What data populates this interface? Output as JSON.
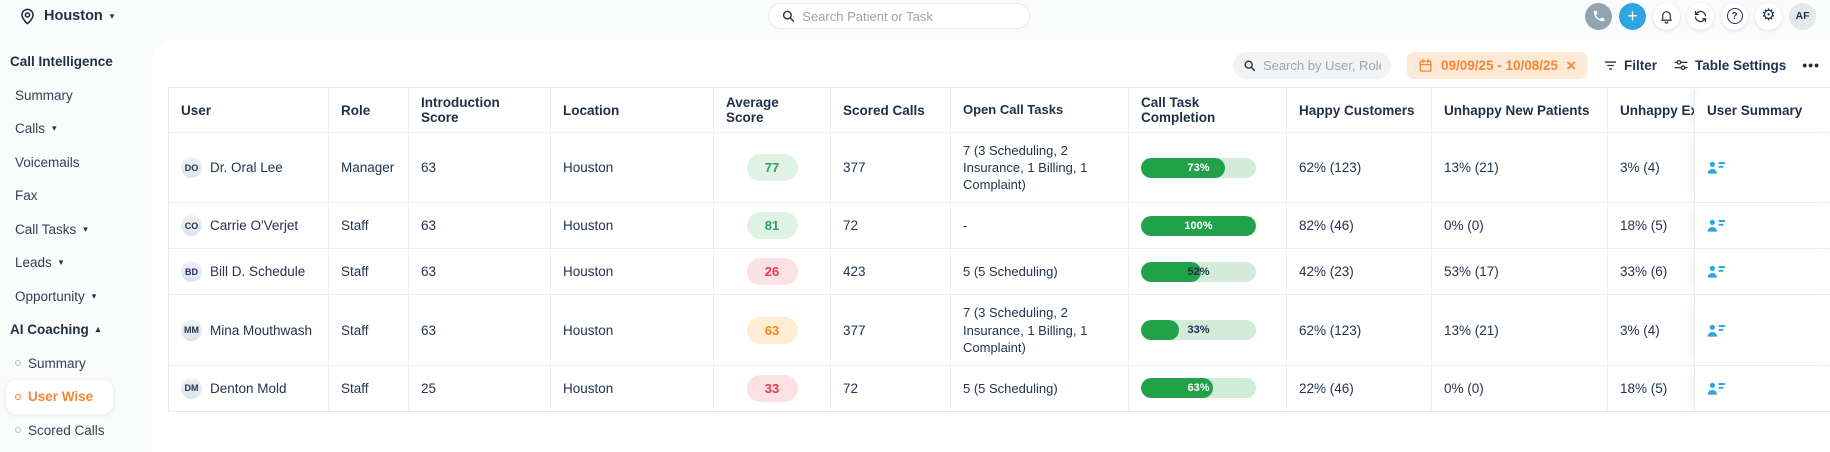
{
  "colors": {
    "accent_orange": "#F58634",
    "accent_blue": "#2EA5DE",
    "navy": "#1E3048",
    "date_pill_bg": "#FCEAD6",
    "green_badge_bg": "#DFF2E4",
    "green_badge_text": "#2AA263",
    "red_badge_bg": "#FBE0E4",
    "red_badge_text": "#E63950",
    "orange_badge_bg": "#FDEDD3",
    "orange_badge_text": "#F0861C",
    "progress_fill": "#21A24A",
    "progress_track": "#D3ECDA"
  },
  "icons": {
    "chevron_down": "▾",
    "chevron_up": "▴",
    "plus": "+",
    "close": "×",
    "gear": "⚙",
    "help": "?",
    "ellipsis": "•••"
  },
  "topbar": {
    "location": "Houston",
    "search_placeholder": "Search Patient or Task",
    "avatar_initials": "AF"
  },
  "sidebar": {
    "items": [
      {
        "label": "Call Intelligence"
      },
      {
        "label": "Summary"
      },
      {
        "label": "Calls"
      },
      {
        "label": "Voicemails"
      },
      {
        "label": "Fax"
      },
      {
        "label": "Call Tasks"
      },
      {
        "label": "Leads"
      },
      {
        "label": "Opportunity"
      },
      {
        "label": "AI Coaching"
      },
      {
        "label": "Summary"
      },
      {
        "label": "User Wise"
      },
      {
        "label": "Scored Calls"
      }
    ]
  },
  "toolbar": {
    "search_placeholder": "Search by User, Role",
    "date_range": "09/09/25 - 10/08/25",
    "filter_label": "Filter",
    "table_settings_label": "Table Settings"
  },
  "table": {
    "columns": [
      "User",
      "Role",
      "Introduction Score",
      "Location",
      "Average Score",
      "Scored Calls",
      "Open Call Tasks",
      "Call Task Completion",
      "Happy Customers",
      "Unhappy New Patients",
      "Unhappy Existing Patients",
      "User Summary"
    ],
    "rows": [
      {
        "initials": "DO",
        "name": "Dr. Oral Lee",
        "role": "Manager",
        "introduction_score": "63",
        "location": "Houston",
        "average_score": "77",
        "average_score_level": "green",
        "scored_calls": "377",
        "open_call_tasks": "7 (3 Scheduling, 2 Insurance, 1 Billing, 1 Complaint)",
        "completion_pct": 73,
        "completion_label": "73%",
        "happy_customers": "62% (123)",
        "unhappy_new_patients": "13% (21)",
        "unhappy_existing_patients": "3% (4)"
      },
      {
        "initials": "CO",
        "name": "Carrie O'Verjet",
        "role": "Staff",
        "introduction_score": "63",
        "location": "Houston",
        "average_score": "81",
        "average_score_level": "green",
        "scored_calls": "72",
        "open_call_tasks": "-",
        "completion_pct": 100,
        "completion_label": "100%",
        "happy_customers": "82% (46)",
        "unhappy_new_patients": "0% (0)",
        "unhappy_existing_patients": "18% (5)"
      },
      {
        "initials": "BD",
        "name": "Bill D. Schedule",
        "role": "Staff",
        "introduction_score": "63",
        "location": "Houston",
        "average_score": "26",
        "average_score_level": "red",
        "scored_calls": "423",
        "open_call_tasks": "5 (5 Scheduling)",
        "completion_pct": 52,
        "completion_label": "52%",
        "happy_customers": "42% (23)",
        "unhappy_new_patients": "53% (17)",
        "unhappy_existing_patients": "33% (6)"
      },
      {
        "initials": "MM",
        "name": "Mina Mouthwash",
        "role": "Staff",
        "introduction_score": "63",
        "location": "Houston",
        "average_score": "63",
        "average_score_level": "orange",
        "scored_calls": "377",
        "open_call_tasks": "7 (3 Scheduling, 2 Insurance, 1 Billing, 1 Complaint)",
        "completion_pct": 33,
        "completion_label": "33%",
        "happy_customers": "62% (123)",
        "unhappy_new_patients": "13% (21)",
        "unhappy_existing_patients": "3% (4)"
      },
      {
        "initials": "DM",
        "name": "Denton Mold",
        "role": "Staff",
        "introduction_score": "25",
        "location": "Houston",
        "average_score": "33",
        "average_score_level": "red",
        "scored_calls": "72",
        "open_call_tasks": "5 (5 Scheduling)",
        "completion_pct": 63,
        "completion_label": "63%",
        "happy_customers": "22% (46)",
        "unhappy_new_patients": "0% (0)",
        "unhappy_existing_patients": "18% (5)"
      }
    ]
  }
}
